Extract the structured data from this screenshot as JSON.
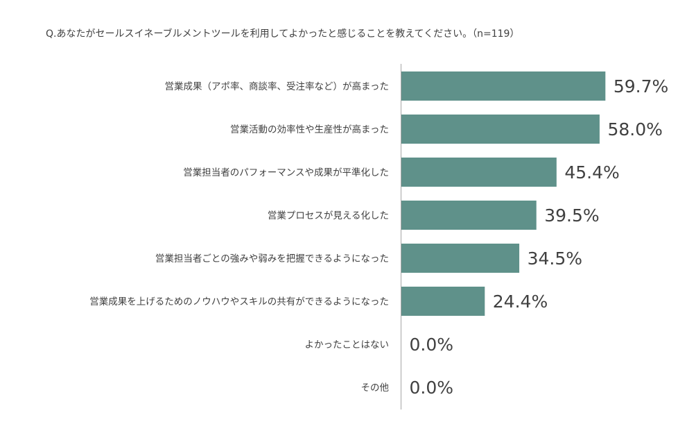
{
  "question": "Q.あなたがセールスイネーブルメントツールを利用してよかったと感じることを教えてください。（n=119）",
  "chart_data": {
    "type": "bar",
    "orientation": "horizontal",
    "categories": [
      "営業成果（アポ率、商談率、受注率など）が高まった",
      "営業活動の効率性や生産性が高まった",
      "営業担当者のパフォーマンスや成果が平準化した",
      "営業プロセスが見える化した",
      "営業担当者ごとの強みや弱みを把握できるようになった",
      "営業成果を上げるためのノウハウやスキルの共有ができるようになった",
      "よかったことはない",
      "その他"
    ],
    "values": [
      59.7,
      58.0,
      45.4,
      39.5,
      34.5,
      24.4,
      0.0,
      0.0
    ],
    "value_labels": [
      "59.7%",
      "58.0%",
      "45.4%",
      "39.5%",
      "34.5%",
      "24.4%",
      "0.0%",
      "0.0%"
    ],
    "xlim": [
      0,
      100
    ],
    "grid": false,
    "bar_color": "#5f918a",
    "axis_color": "#a6a6a6"
  }
}
